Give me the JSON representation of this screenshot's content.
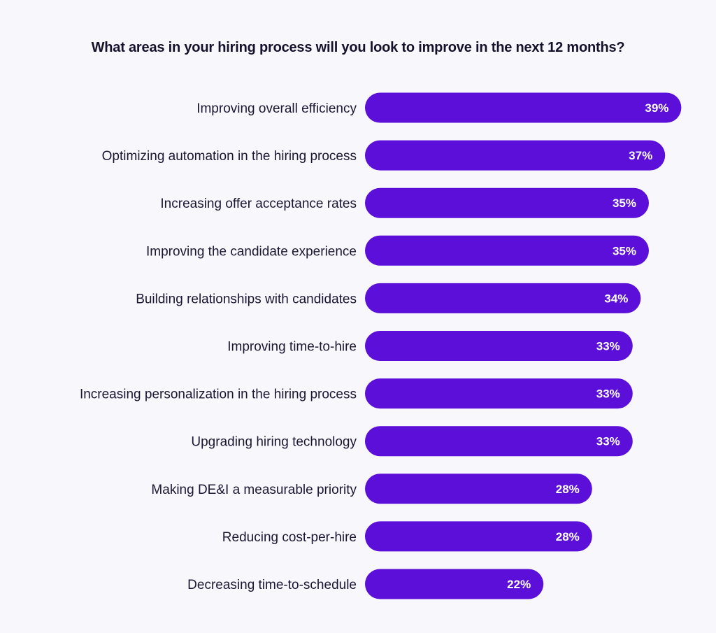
{
  "colors": {
    "background": "#f7f7fc",
    "bar": "#5b0fd9",
    "label_text": "#1b1733",
    "value_text": "#ffffff"
  },
  "chart_data": {
    "type": "bar",
    "orientation": "horizontal",
    "title": "What areas in your hiring process will you look to improve in the next 12 months?",
    "categories": [
      "Improving overall efficiency",
      "Optimizing automation in the hiring process",
      "Increasing offer acceptance rates",
      "Improving the candidate experience",
      "Building relationships with candidates",
      "Improving time-to-hire",
      "Increasing personalization in the hiring process",
      "Upgrading hiring technology",
      "Making DE&I a measurable priority",
      "Reducing cost-per-hire",
      "Decreasing time-to-schedule"
    ],
    "values": [
      39,
      37,
      35,
      35,
      34,
      33,
      33,
      33,
      28,
      28,
      22
    ],
    "value_labels": [
      "39%",
      "37%",
      "35%",
      "35%",
      "34%",
      "33%",
      "33%",
      "33%",
      "28%",
      "28%",
      "22%"
    ],
    "unit": "%",
    "grid": false,
    "legend": "none"
  }
}
